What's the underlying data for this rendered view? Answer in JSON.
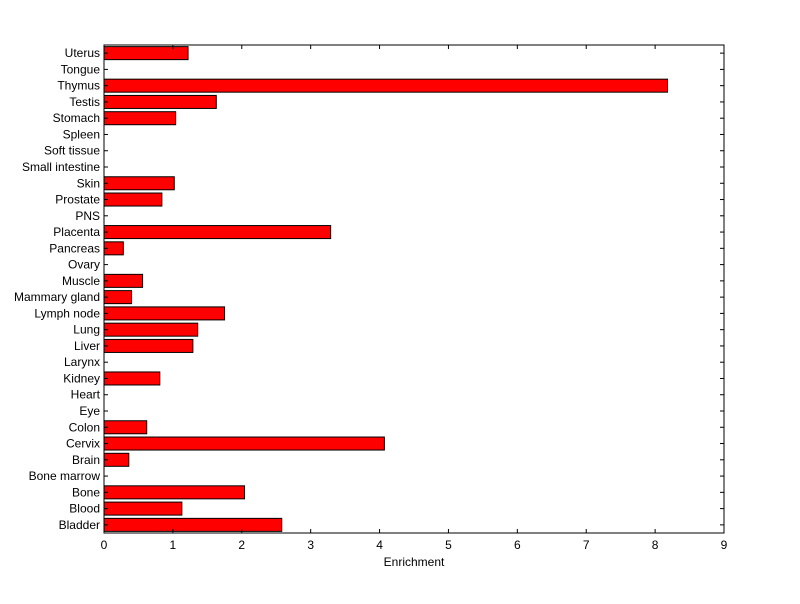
{
  "chart_data": {
    "type": "bar",
    "orientation": "horizontal",
    "categories": [
      "Bladder",
      "Blood",
      "Bone",
      "Bone marrow",
      "Brain",
      "Cervix",
      "Colon",
      "Eye",
      "Heart",
      "Kidney",
      "Larynx",
      "Liver",
      "Lung",
      "Lymph node",
      "Mammary gland",
      "Muscle",
      "Ovary",
      "Pancreas",
      "Placenta",
      "PNS",
      "Prostate",
      "Skin",
      "Small intestine",
      "Soft tissue",
      "Spleen",
      "Stomach",
      "Testis",
      "Thymus",
      "Tongue",
      "Uterus"
    ],
    "values": [
      2.58,
      1.13,
      2.04,
      0,
      0.36,
      4.07,
      0.62,
      0,
      0,
      0.81,
      0,
      1.29,
      1.36,
      1.75,
      0.4,
      0.56,
      0,
      0.28,
      3.29,
      0,
      0.84,
      1.02,
      0,
      0,
      0,
      1.04,
      1.63,
      8.18,
      0,
      1.22
    ],
    "xlabel": "Enrichment",
    "ylabel": "",
    "title": "",
    "xlim": [
      0,
      9
    ],
    "xticks": [
      "0",
      "1",
      "2",
      "3",
      "4",
      "5",
      "6",
      "7",
      "8",
      "9"
    ],
    "grid": false,
    "bar_color": "#ff0000",
    "edge_color": "#000000"
  }
}
